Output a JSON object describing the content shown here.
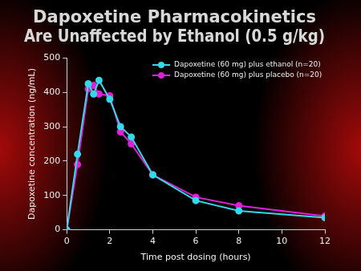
{
  "chart_data": {
    "type": "line",
    "title": "Dapoxetine Pharmacokinetics\nAre Unaffected by Ethanol (0.5 g/kg)",
    "x_label": "Time post dosing (hours)",
    "y_label": "Dapoxetine concentration (ng/mL)",
    "x": [
      0,
      0.5,
      1,
      1.25,
      1.5,
      2,
      2.5,
      3,
      4,
      6,
      8,
      12
    ],
    "series": [
      {
        "name": "Dapoxetine (60 mg) plus ethanol (n=20)",
        "color": "#33d9e6",
        "marker": "circle",
        "values": [
          0,
          220,
          425,
          395,
          435,
          380,
          300,
          270,
          160,
          85,
          55,
          35
        ]
      },
      {
        "name": "Dapoxetine (60 mg) plus placebo (n=20)",
        "color": "#e020d8",
        "marker": "circle",
        "values": [
          0,
          190,
          410,
          420,
          395,
          390,
          285,
          250,
          160,
          95,
          70,
          40
        ]
      }
    ],
    "xlim": [
      0,
      12
    ],
    "xticks": [
      0,
      2,
      4,
      6,
      8,
      10,
      12
    ],
    "ylim": [
      0,
      500
    ],
    "yticks": [
      0,
      100,
      200,
      300,
      400,
      500
    ],
    "grid": false,
    "legend": "upper right"
  }
}
